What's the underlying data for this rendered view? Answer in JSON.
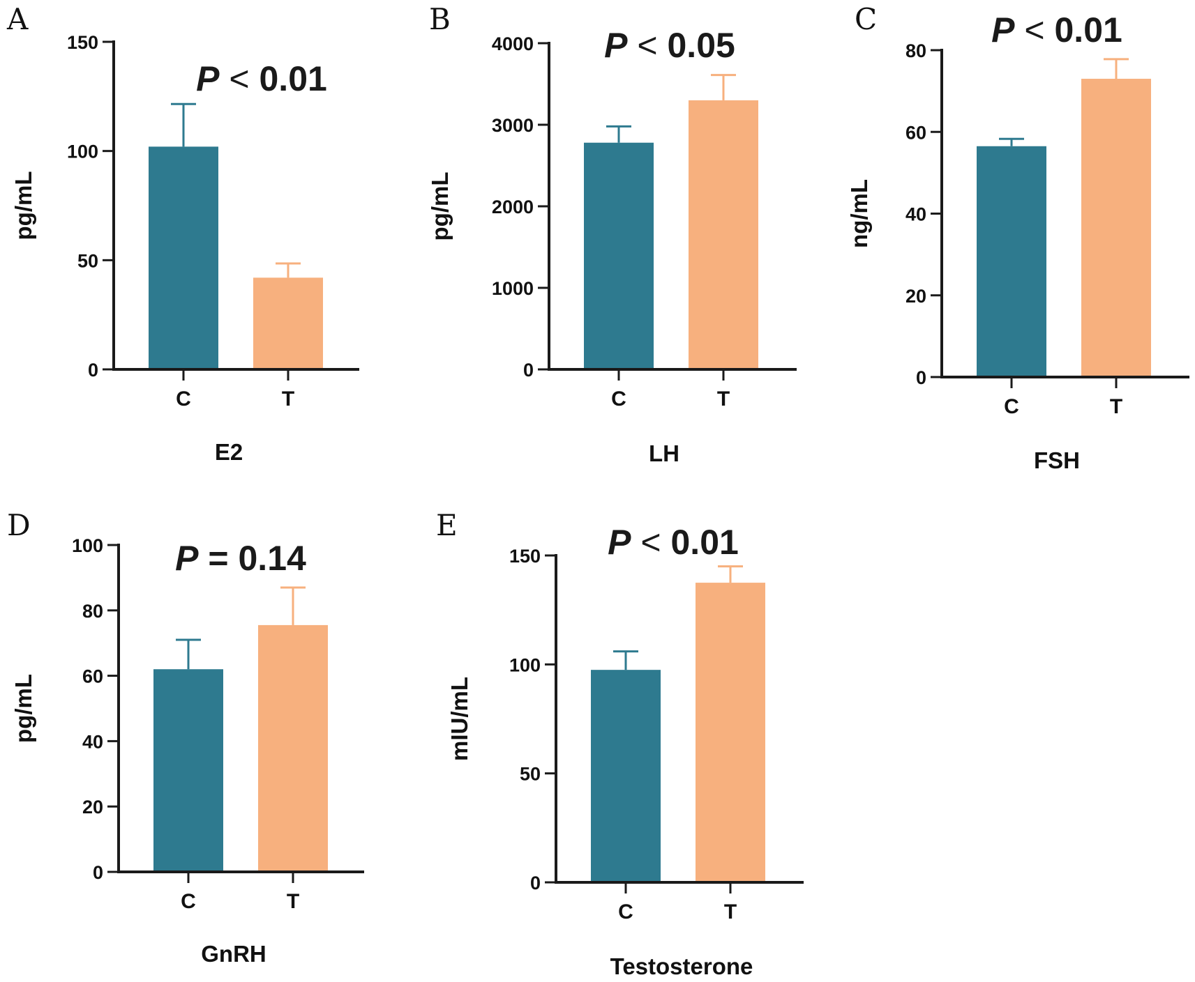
{
  "colors": {
    "control": "#2e7a8f",
    "treatment": "#f7b07e",
    "axis": "#1a1a1a"
  },
  "chart_data": [
    {
      "type": "bar",
      "panel": "A",
      "title": "",
      "p_label": {
        "symbol": "P",
        "relation": "<",
        "value": "0.01"
      },
      "categories": [
        "C",
        "T"
      ],
      "values": [
        102,
        42
      ],
      "errors": [
        19.5,
        6.5
      ],
      "xlabel": "E2",
      "ylabel": "pg/mL",
      "ylim": [
        0,
        150
      ],
      "yticks": [
        0,
        50,
        100,
        150
      ],
      "ytick_labels": [
        "0",
        "50",
        "100",
        "150"
      ]
    },
    {
      "type": "bar",
      "panel": "B",
      "title": "",
      "p_label": {
        "symbol": "P",
        "relation": "<",
        "value": "0.05"
      },
      "categories": [
        "C",
        "T"
      ],
      "values": [
        2780,
        3300
      ],
      "errors": [
        200,
        310
      ],
      "xlabel": "LH",
      "ylabel": "pg/mL",
      "ylim": [
        0,
        4000
      ],
      "yticks": [
        0,
        1000,
        2000,
        3000,
        4000
      ],
      "ytick_labels": [
        "0",
        "1000",
        "2000",
        "3000",
        "4000"
      ]
    },
    {
      "type": "bar",
      "panel": "C",
      "title": "",
      "p_label": {
        "symbol": "P",
        "relation": "<",
        "value": "0.01"
      },
      "categories": [
        "C",
        "T"
      ],
      "values": [
        56.5,
        73
      ],
      "errors": [
        1.8,
        4.8
      ],
      "xlabel": "FSH",
      "ylabel": "ng/mL",
      "ylim": [
        0,
        80
      ],
      "yticks": [
        0,
        20,
        40,
        60,
        80
      ],
      "ytick_labels": [
        "0",
        "20",
        "40",
        "60",
        "80"
      ]
    },
    {
      "type": "bar",
      "panel": "D",
      "title": "",
      "p_label": {
        "symbol": "P",
        "relation": "=",
        "value": "0.14"
      },
      "categories": [
        "C",
        "T"
      ],
      "values": [
        62,
        75.5
      ],
      "errors": [
        9,
        11.5
      ],
      "xlabel": "GnRH",
      "ylabel": "pg/mL",
      "ylim": [
        0,
        100
      ],
      "yticks": [
        0,
        20,
        40,
        60,
        80,
        100
      ],
      "ytick_labels": [
        "0",
        "20",
        "40",
        "60",
        "80",
        "100"
      ]
    },
    {
      "type": "bar",
      "panel": "E",
      "title": "",
      "p_label": {
        "symbol": "P",
        "relation": "<",
        "value": "0.01"
      },
      "categories": [
        "C",
        "T"
      ],
      "values": [
        97.5,
        137.5
      ],
      "errors": [
        8.5,
        7.5
      ],
      "xlabel": "Testosterone",
      "ylabel": "mIU/mL",
      "ylim": [
        0,
        150
      ],
      "yticks": [
        0,
        50,
        100,
        150
      ],
      "ytick_labels": [
        "0",
        "50",
        "100",
        "150"
      ]
    }
  ]
}
